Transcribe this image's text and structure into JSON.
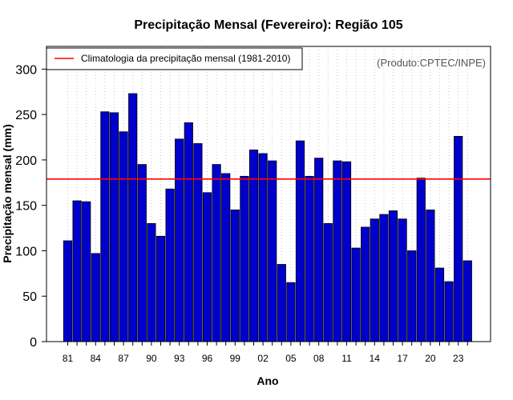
{
  "chart_data": {
    "type": "bar",
    "title": "Precipitação Mensal (Fevereiro): Região 105",
    "xlabel": "Ano",
    "ylabel": "Precipitação mensal (mm)",
    "ylim": [
      0,
      325
    ],
    "yticks": [
      0,
      50,
      100,
      150,
      200,
      250,
      300
    ],
    "grid": "vertical dotted",
    "categories": [
      "81",
      "82",
      "83",
      "84",
      "85",
      "86",
      "87",
      "88",
      "89",
      "90",
      "91",
      "92",
      "93",
      "94",
      "95",
      "96",
      "97",
      "98",
      "99",
      "00",
      "01",
      "02",
      "03",
      "04",
      "05",
      "06",
      "07",
      "08",
      "09",
      "10",
      "11",
      "12",
      "13",
      "14",
      "15",
      "16",
      "17",
      "18",
      "19",
      "20",
      "21",
      "22",
      "23",
      "24"
    ],
    "xtick_labels": [
      "81",
      "84",
      "87",
      "90",
      "93",
      "96",
      "99",
      "02",
      "05",
      "08",
      "11",
      "14",
      "17",
      "20",
      "23"
    ],
    "values": [
      111,
      155,
      154,
      97,
      253,
      252,
      231,
      273,
      195,
      130,
      116,
      168,
      223,
      241,
      218,
      164,
      195,
      185,
      145,
      182,
      211,
      207,
      199,
      85,
      65,
      221,
      182,
      202,
      130,
      199,
      198,
      103,
      126,
      135,
      140,
      144,
      135,
      100,
      180,
      145,
      81,
      66,
      226,
      89
    ],
    "bar_color": "#0000CD",
    "reference_line": {
      "value": 179,
      "label": "Climatologia da precipitação mensal (1981-2010)",
      "color": "#FF0000"
    },
    "legend_position": "top-left",
    "credit": "(Produto:CPTEC/INPE)"
  }
}
